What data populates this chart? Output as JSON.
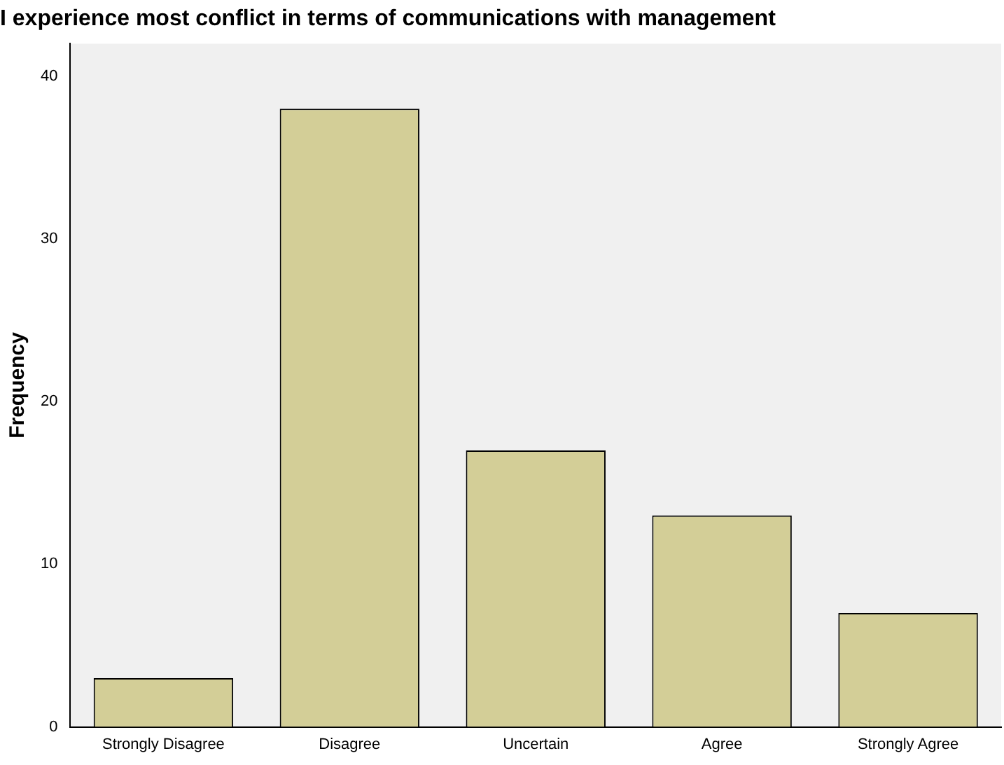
{
  "chart_data": {
    "type": "bar",
    "title": "I experience most conflict in terms of communications with management",
    "ylabel": "Frequency",
    "categories": [
      "Strongly Disagree",
      "Disagree",
      "Uncertain",
      "Agree",
      "Strongly Agree"
    ],
    "values": [
      3,
      38,
      17,
      13,
      7
    ],
    "color": "#d3ce97",
    "ylim": [
      0,
      42
    ],
    "yticks": [
      0,
      10,
      20,
      30,
      40
    ],
    "grid": false,
    "legend": false
  }
}
